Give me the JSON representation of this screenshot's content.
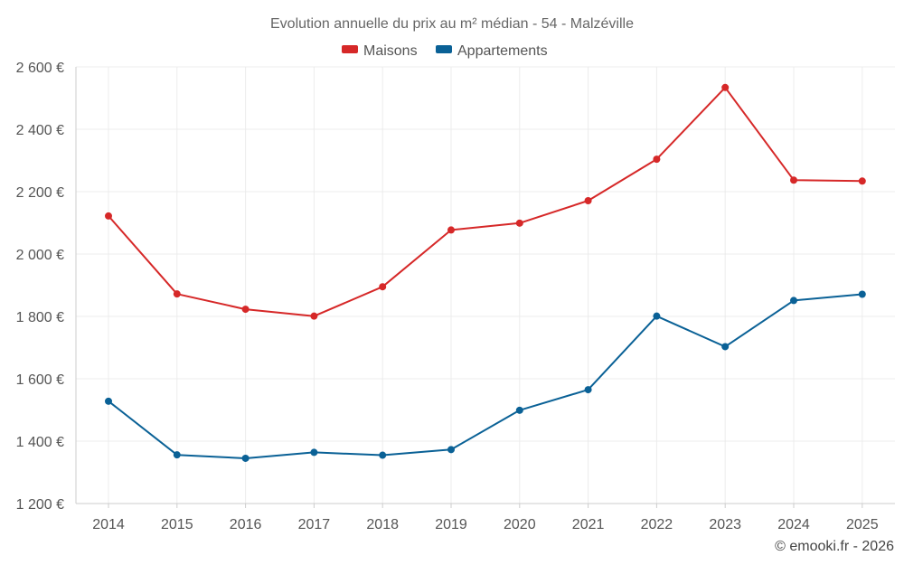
{
  "chart_data": {
    "type": "line",
    "title": "Evolution annuelle du prix au m² médian - 54 - Malzéville",
    "xlabel": "",
    "ylabel": "",
    "categories": [
      "2014",
      "2015",
      "2016",
      "2017",
      "2018",
      "2019",
      "2020",
      "2021",
      "2022",
      "2023",
      "2024",
      "2025"
    ],
    "ylim": [
      1200,
      2600
    ],
    "yticks": [
      1200,
      1400,
      1600,
      1800,
      2000,
      2200,
      2400,
      2600
    ],
    "ytick_labels": [
      "1 200 €",
      "1 400 €",
      "1 600 €",
      "1 800 €",
      "2 000 €",
      "2 200 €",
      "2 400 €",
      "2 600 €"
    ],
    "grid": true,
    "legend_position": "top-center",
    "series": [
      {
        "name": "Maisons",
        "color": "#d62828",
        "values": [
          2122,
          1872,
          1823,
          1801,
          1895,
          2077,
          2099,
          2171,
          2304,
          2534,
          2237,
          2234
        ]
      },
      {
        "name": "Appartements",
        "color": "#0a6196",
        "values": [
          1528,
          1356,
          1345,
          1364,
          1355,
          1373,
          1499,
          1565,
          1801,
          1703,
          1851,
          1871
        ]
      }
    ]
  },
  "credit": "© emooki.fr - 2026"
}
